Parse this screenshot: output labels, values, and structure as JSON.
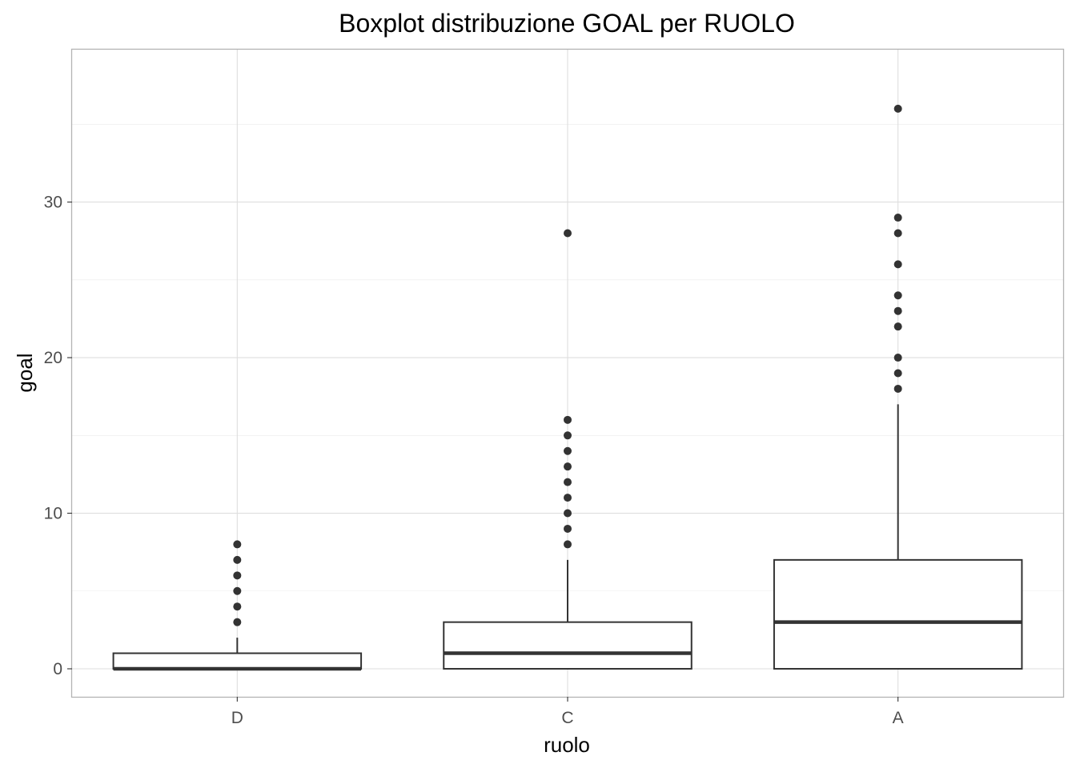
{
  "chart_data": {
    "type": "boxplot",
    "title": "Boxplot distribuzione GOAL per RUOLO",
    "xlabel": "ruolo",
    "ylabel": "goal",
    "categories": [
      "D",
      "C",
      "A"
    ],
    "ylim": [
      -1.8,
      39.8
    ],
    "yticks": [
      0,
      10,
      20,
      30
    ],
    "y_minor_ticks": [
      5,
      15,
      25,
      35
    ],
    "grid": true,
    "boxes": [
      {
        "category": "D",
        "whisker_low": 0,
        "q1": 0,
        "median": 0,
        "q3": 1,
        "whisker_high": 2,
        "outliers": [
          3,
          4,
          5,
          6,
          7,
          8
        ]
      },
      {
        "category": "C",
        "whisker_low": 0,
        "q1": 0,
        "median": 1,
        "q3": 3,
        "whisker_high": 7,
        "outliers": [
          8,
          9,
          10,
          11,
          12,
          13,
          14,
          15,
          16,
          28
        ]
      },
      {
        "category": "A",
        "whisker_low": 0,
        "q1": 0,
        "median": 3,
        "q3": 7,
        "whisker_high": 17,
        "outliers": [
          18,
          19,
          20,
          22,
          23,
          24,
          26,
          28,
          29,
          36
        ]
      }
    ]
  }
}
